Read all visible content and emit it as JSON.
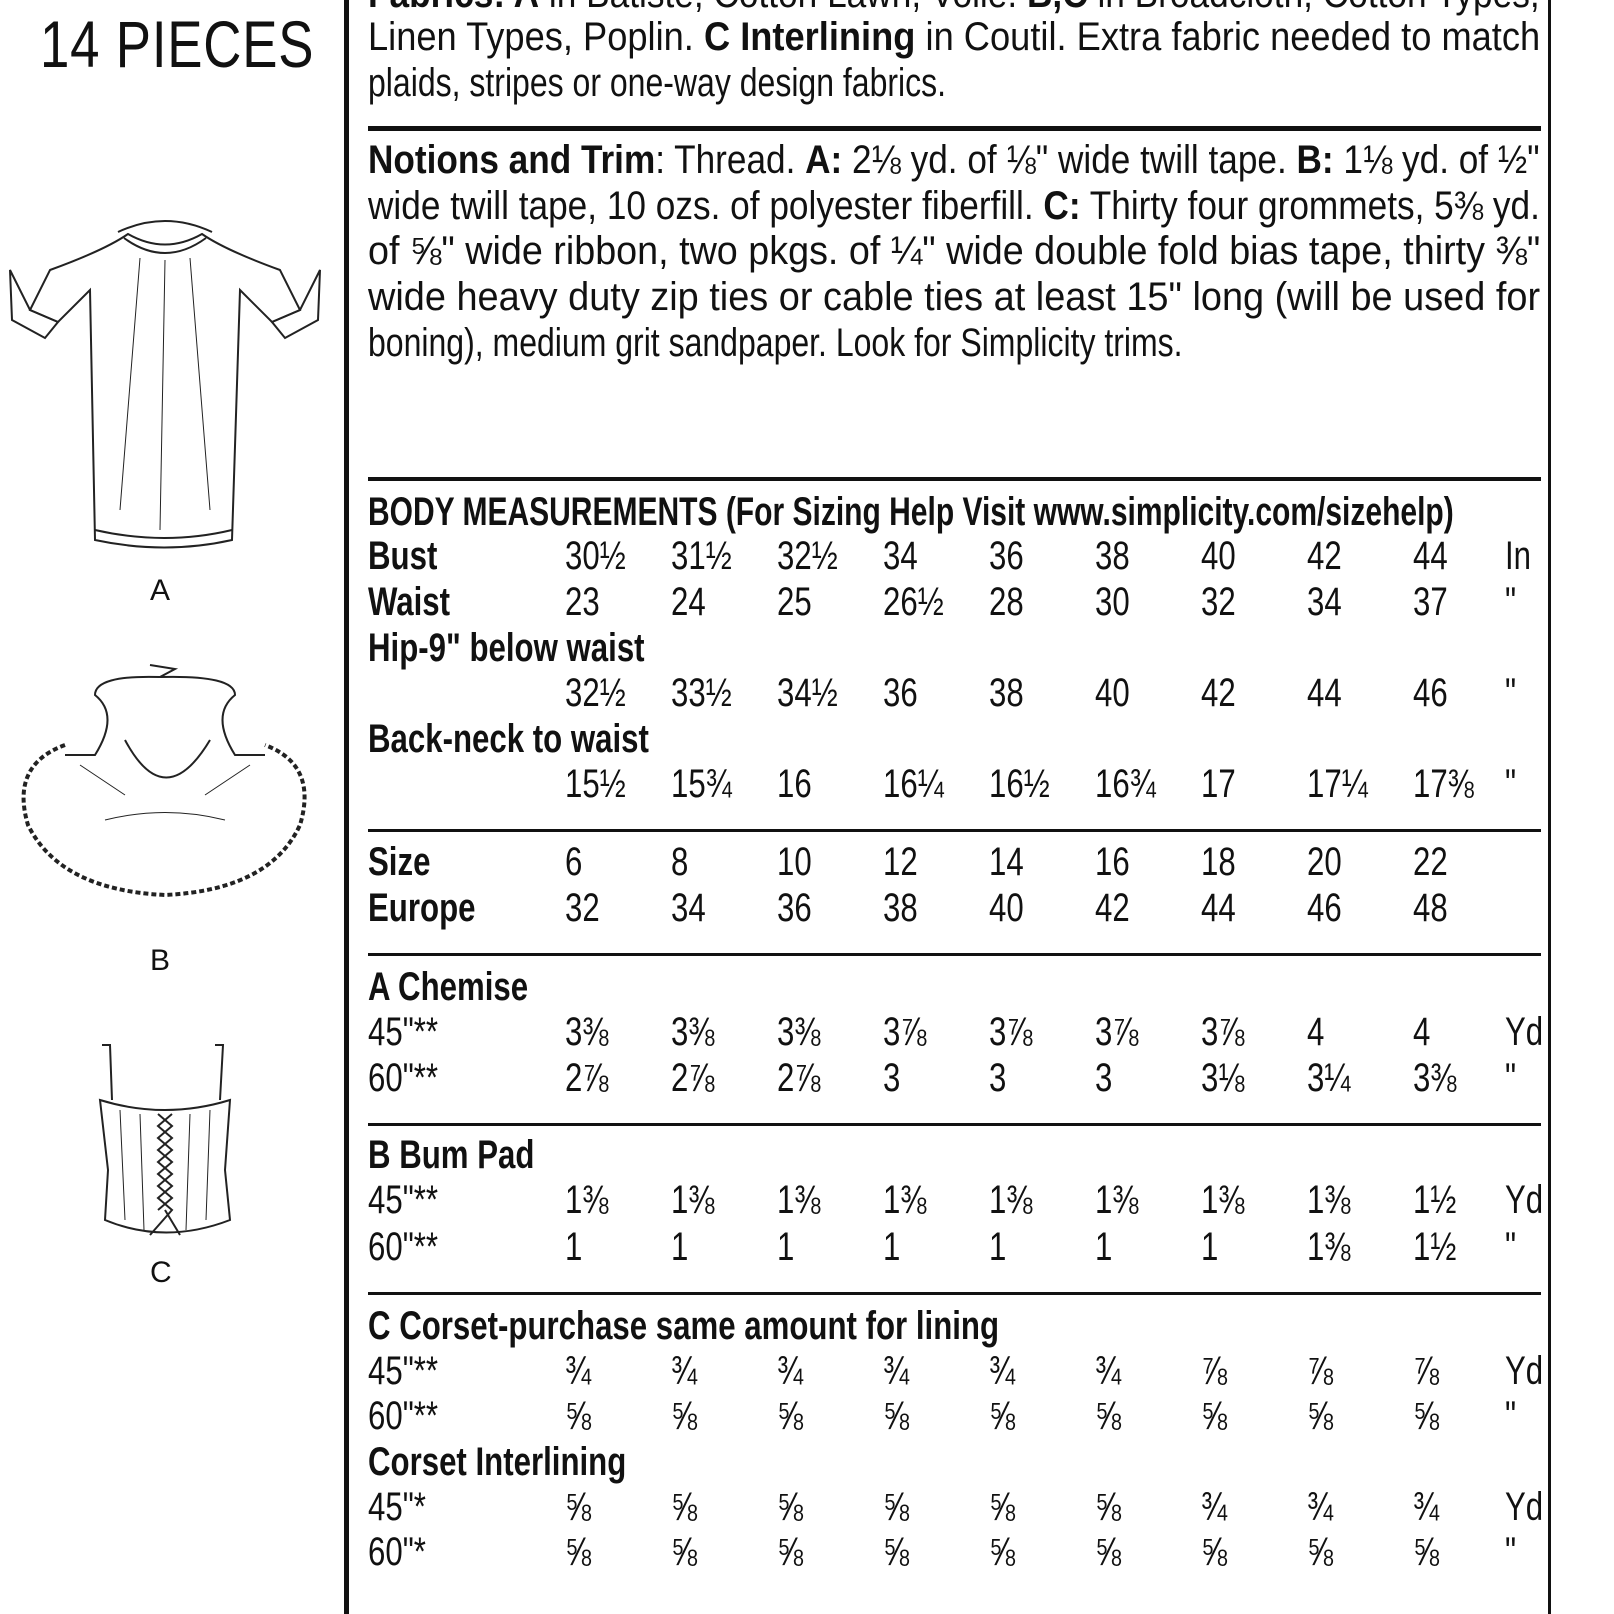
{
  "left_panel": {
    "title": "14 PIECES",
    "views": [
      {
        "letter": "A",
        "icon": "chemise-illustration"
      },
      {
        "letter": "B",
        "icon": "bum-pad-illustration"
      },
      {
        "letter": "C",
        "icon": "corset-illustration"
      }
    ]
  },
  "fabrics": {
    "lines": [
      [
        {
          "b": true,
          "t": "Fabrics: A"
        },
        {
          "t": " in Batiste, Cotton Lawn, Voile. "
        },
        {
          "b": true,
          "t": "B,C"
        },
        {
          "t": " in Broadcloth, Cotton Types,"
        }
      ],
      [
        {
          "t": "Linen Types, Poplin. "
        },
        {
          "b": true,
          "t": "C Interlining"
        },
        {
          "t": " in Coutil. Extra fabric needed to match"
        }
      ],
      [
        {
          "t": "plaids, stripes or one-way design fabrics."
        }
      ]
    ]
  },
  "notions": {
    "lines": [
      [
        {
          "b": true,
          "t": "Notions and Trim"
        },
        {
          "t": ": Thread. "
        },
        {
          "b": true,
          "t": "A:"
        },
        {
          "t": " 2⅛ yd. of ⅛\" wide twill tape. "
        },
        {
          "b": true,
          "t": "B:"
        },
        {
          "t": " 1⅛ yd. of ½\""
        }
      ],
      [
        {
          "t": "wide twill tape, 10 ozs. of polyester fiberfill. "
        },
        {
          "b": true,
          "t": "C:"
        },
        {
          "t": " Thirty four grommets, 5⅜ yd."
        }
      ],
      [
        {
          "t": "of ⅝\" wide ribbon, two pkgs. of ¼\" wide double fold bias tape, thirty ⅜\""
        }
      ],
      [
        {
          "t": "wide heavy duty zip ties or cable ties at least 15\" long (will be used for"
        }
      ],
      [
        {
          "t": "boning), medium grit sandpaper. Look for Simplicity trims."
        }
      ]
    ]
  },
  "table": {
    "header": "BODY MEASUREMENTS (For Sizing Help Visit www.simplicity.com/sizehelp)",
    "sections": [
      {
        "rows": [
          {
            "label": "Bust",
            "bold": true,
            "values": [
              "30½",
              "31½",
              "32½",
              "34",
              "36",
              "38",
              "40",
              "42",
              "44"
            ],
            "unit": "In"
          },
          {
            "label": "Waist",
            "bold": true,
            "values": [
              "23",
              "24",
              "25",
              "26½",
              "28",
              "30",
              "32",
              "34",
              "37"
            ],
            "unit": "\""
          },
          {
            "label": "Hip-9\" below waist",
            "bold": true,
            "values": [],
            "unit": ""
          },
          {
            "label": "",
            "values": [
              "32½",
              "33½",
              "34½",
              "36",
              "38",
              "40",
              "42",
              "44",
              "46"
            ],
            "unit": "\""
          },
          {
            "label": "Back-neck to waist",
            "bold": true,
            "values": [],
            "unit": ""
          },
          {
            "label": "",
            "values": [
              "15½",
              "15¾",
              "16",
              "16¼",
              "16½",
              "16¾",
              "17",
              "17¼",
              "17⅜"
            ],
            "unit": "\""
          }
        ]
      },
      {
        "rows": [
          {
            "label": "Size",
            "bold": true,
            "values": [
              "6",
              "8",
              "10",
              "12",
              "14",
              "16",
              "18",
              "20",
              "22"
            ],
            "unit": ""
          },
          {
            "label": "Europe",
            "bold": true,
            "values": [
              "32",
              "34",
              "36",
              "38",
              "40",
              "42",
              "44",
              "46",
              "48"
            ],
            "unit": ""
          }
        ]
      },
      {
        "rows": [
          {
            "label": "A Chemise",
            "bold": true,
            "values": [],
            "unit": ""
          },
          {
            "label": "45\"**",
            "values": [
              "3⅜",
              "3⅜",
              "3⅜",
              "3⅞",
              "3⅞",
              "3⅞",
              "3⅞",
              "4",
              "4"
            ],
            "unit": "Yd"
          },
          {
            "label": "60\"**",
            "values": [
              "2⅞",
              "2⅞",
              "2⅞",
              "3",
              "3",
              "3",
              "3⅛",
              "3¼",
              "3⅜"
            ],
            "unit": "\""
          }
        ]
      },
      {
        "rows": [
          {
            "label": "B Bum Pad",
            "bold": true,
            "values": [],
            "unit": ""
          },
          {
            "label": "45\"**",
            "values": [
              "1⅜",
              "1⅜",
              "1⅜",
              "1⅜",
              "1⅜",
              "1⅜",
              "1⅜",
              "1⅜",
              "1½"
            ],
            "unit": "Yd"
          },
          {
            "label": "60\"**",
            "values": [
              "1",
              "1",
              "1",
              "1",
              "1",
              "1",
              "1",
              "1⅜",
              "1½"
            ],
            "unit": "\""
          }
        ]
      },
      {
        "rows": [
          {
            "label": "C Corset-purchase same amount for lining",
            "bold": true,
            "values": [],
            "unit": ""
          },
          {
            "label": "45\"**",
            "values": [
              "¾",
              "¾",
              "¾",
              "¾",
              "¾",
              "¾",
              "⅞",
              "⅞",
              "⅞"
            ],
            "unit": "Yd"
          },
          {
            "label": "60\"**",
            "values": [
              "⅝",
              "⅝",
              "⅝",
              "⅝",
              "⅝",
              "⅝",
              "⅝",
              "⅝",
              "⅝"
            ],
            "unit": "\""
          },
          {
            "label": "Corset Interlining",
            "bold": true,
            "values": [],
            "unit": ""
          },
          {
            "label": "45\"*",
            "values": [
              "⅝",
              "⅝",
              "⅝",
              "⅝",
              "⅝",
              "⅝",
              "¾",
              "¾",
              "¾"
            ],
            "unit": "Yd"
          },
          {
            "label": "60\"*",
            "values": [
              "⅝",
              "⅝",
              "⅝",
              "⅝",
              "⅝",
              "⅝",
              "⅝",
              "⅝",
              "⅝"
            ],
            "unit": "\""
          }
        ]
      }
    ]
  }
}
